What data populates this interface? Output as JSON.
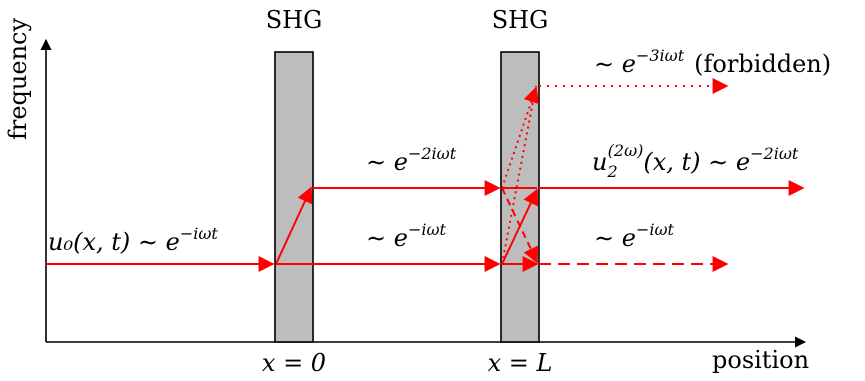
{
  "axes": {
    "y_label": "frequency",
    "x_label": "position"
  },
  "crystals": [
    {
      "label": "SHG",
      "position_label": "x = 0"
    },
    {
      "label": "SHG",
      "position_label": "x = L"
    }
  ],
  "annotations": {
    "input_field": "u₀(x, t) ∼ e",
    "input_exp": "−iωt",
    "mid_second": "∼ e",
    "mid_second_exp": "−2iωt",
    "mid_first": "∼ e",
    "mid_first_exp": "−iωt",
    "third": "∼ e",
    "third_exp": "−3iωt",
    "third_note": "(forbidden)",
    "out_second_u": "u",
    "out_second_sub": "2",
    "out_second_sup": "(2ω)",
    "out_second_rest": "(x, t) ∼ e",
    "out_second_exp": "−2iωt",
    "out_first": "∼ e",
    "out_first_exp": "−iωt"
  },
  "colors": {
    "beam": "#ff0000",
    "crystal_fill": "#bdbdbd",
    "axis": "#000000"
  }
}
